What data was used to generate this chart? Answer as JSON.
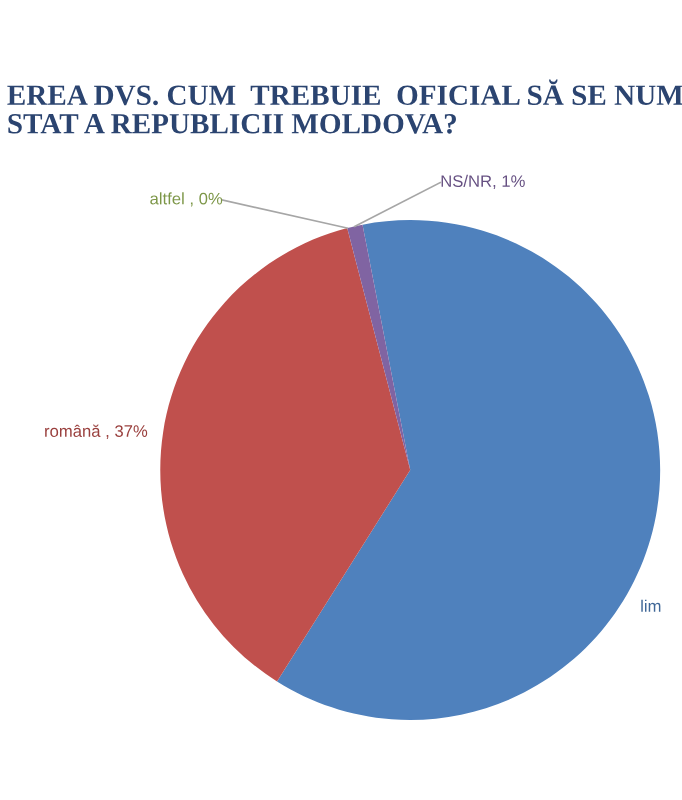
{
  "chart_data": {
    "type": "pie",
    "title": "EREA DVS. CUM  TREBUIE  OFICIAL SĂ SE NUM\nSTAT A REPUBLICII MOLDOVA?",
    "categories": [
      "lim",
      "română , 37%",
      "altfel , 0%",
      "NS/NR, 1%"
    ],
    "values": [
      62,
      37,
      0,
      1
    ],
    "colors": [
      "#4f81bd",
      "#c0504d",
      "#9bbb59",
      "#8064a2"
    ],
    "legend": false
  }
}
